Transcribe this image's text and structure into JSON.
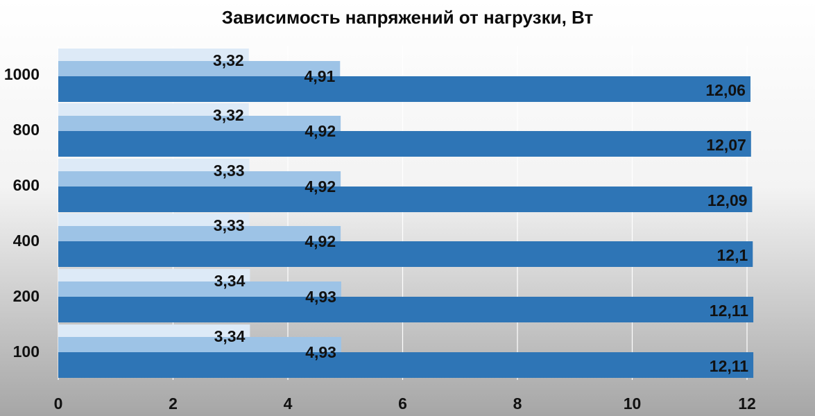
{
  "chart_data": {
    "type": "bar",
    "orientation": "horizontal",
    "title": "Зависимость напряжений от нагрузки, Вт",
    "xlabel": "",
    "ylabel": "",
    "categories": [
      "1000",
      "800",
      "600",
      "400",
      "200",
      "100"
    ],
    "series": [
      {
        "values": [
          3.32,
          3.32,
          3.33,
          3.33,
          3.34,
          3.34
        ],
        "labels": [
          "3,32",
          "3,32",
          "3,33",
          "3,33",
          "3,34",
          "3,34"
        ],
        "color": "#ddeaf7"
      },
      {
        "values": [
          4.91,
          4.92,
          4.92,
          4.92,
          4.93,
          4.93
        ],
        "labels": [
          "4,91",
          "4,92",
          "4,92",
          "4,92",
          "4,93",
          "4,93"
        ],
        "color": "#9dc3e6"
      },
      {
        "values": [
          12.06,
          12.07,
          12.09,
          12.1,
          12.11,
          12.11
        ],
        "labels": [
          "12,06",
          "12,07",
          "12,09",
          "12,1",
          "12,11",
          "12,11"
        ],
        "color": "#2e75b6"
      }
    ],
    "xlim": [
      0,
      12
    ],
    "x_ticks": [
      "0",
      "2",
      "4",
      "6",
      "8",
      "10",
      "12"
    ],
    "grid": true,
    "legend": "none"
  }
}
